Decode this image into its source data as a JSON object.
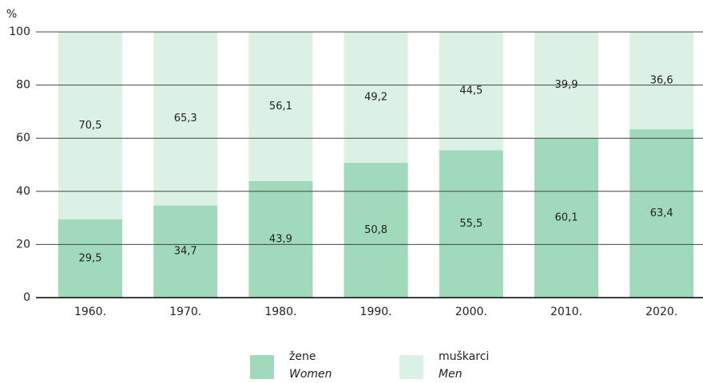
{
  "chart_data": {
    "type": "stacked_bar",
    "y_unit": "%",
    "categories": [
      "1960.",
      "1970.",
      "1980.",
      "1990.",
      "2000.",
      "2010.",
      "2020."
    ],
    "series": [
      {
        "name": "žene",
        "name_en": "Women",
        "color": "#a0d9bb",
        "values": [
          29.5,
          34.7,
          43.9,
          50.8,
          55.5,
          60.1,
          63.4
        ],
        "value_labels": [
          "29,5",
          "34,7",
          "43,9",
          "50,8",
          "55,5",
          "60,1",
          "63,4"
        ]
      },
      {
        "name": "muškarci",
        "name_en": "Men",
        "color": "#dcf1e6",
        "values": [
          70.5,
          65.3,
          56.1,
          49.2,
          44.5,
          39.9,
          36.6
        ],
        "value_labels": [
          "70,5",
          "65,3",
          "56,1",
          "49,2",
          "44,5",
          "39,9",
          "36,6"
        ]
      }
    ],
    "ylim": [
      0,
      100
    ],
    "yticks": [
      0,
      20,
      40,
      60,
      80,
      100
    ],
    "grid": true,
    "legend": "bottom"
  }
}
